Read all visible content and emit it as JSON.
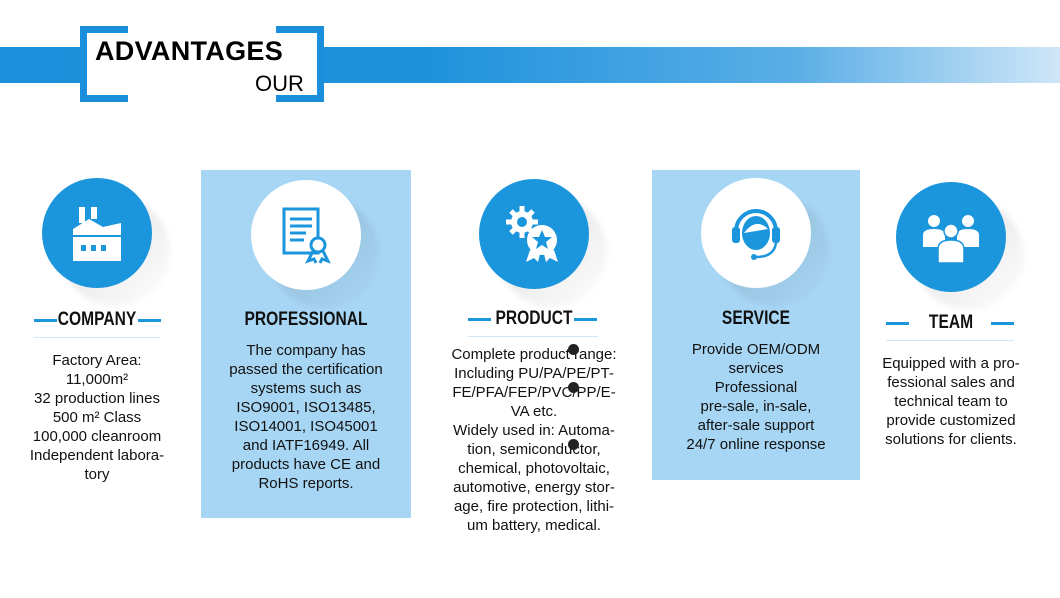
{
  "header": {
    "title": "ADVANTAGES",
    "subtitle": "OUR",
    "accent": "#1b95dc"
  },
  "columns": [
    {
      "id": "company",
      "heading": "COMPANY",
      "icon": "factory-icon",
      "lines": [
        {
          "t": "Factory Area:",
          "b": true
        },
        {
          "t": "11,000m²",
          "b": false
        },
        {
          "t": "32 production lines",
          "b": true
        },
        {
          "t": "500 m² Class",
          "b": false
        },
        {
          "t": "100,000 cleanroom",
          "b": true
        },
        {
          "t": "Independent labora-",
          "b": true
        },
        {
          "t": "tory",
          "b": false
        }
      ]
    },
    {
      "id": "professional",
      "heading": "PROFESSIONAL",
      "icon": "certificate-icon",
      "lines": [
        {
          "t": "The company has"
        },
        {
          "t": "passed the certification"
        },
        {
          "t": "systems such as"
        },
        {
          "t": "ISO9001, ISO13485,"
        },
        {
          "t": "ISO14001, ISO45001"
        },
        {
          "t": "and IATF16949. All"
        },
        {
          "t": "products have CE and"
        },
        {
          "t": "RoHS reports."
        }
      ]
    },
    {
      "id": "product",
      "heading": "PRODUCT",
      "icon": "gear-award-icon",
      "lines": [
        {
          "t": "Complete product range:"
        },
        {
          "t": "Including PU/PA/PE/PT-"
        },
        {
          "t": "FE/PFA/FEP/PVC/PP/E-"
        },
        {
          "t": "VA etc."
        },
        {
          "t": "Widely used in: Automa-"
        },
        {
          "t": "tion, semiconductor,"
        },
        {
          "t": "chemical, photovoltaic,"
        },
        {
          "t": "automotive, energy stor-"
        },
        {
          "t": "age, fire protection, lithi-"
        },
        {
          "t": "um battery, medical."
        }
      ]
    },
    {
      "id": "service",
      "heading": "SERVICE",
      "icon": "headset-icon",
      "lines": [
        {
          "t": "Provide OEM/ODM",
          "b": true
        },
        {
          "t": "services",
          "b": false
        },
        {
          "t": "Professional",
          "b": true
        },
        {
          "t": "pre-sale, in-sale,",
          "b": false
        },
        {
          "t": "after-sale support",
          "b": false
        },
        {
          "t": "24/7 online response",
          "b": true
        }
      ]
    },
    {
      "id": "team",
      "heading": "TEAM",
      "icon": "team-icon",
      "lines": [
        {
          "t": "Equipped with a pro-"
        },
        {
          "t": "fessional sales and"
        },
        {
          "t": "technical team to"
        },
        {
          "t": "provide customized"
        },
        {
          "t": "solutions for clients."
        }
      ]
    }
  ]
}
